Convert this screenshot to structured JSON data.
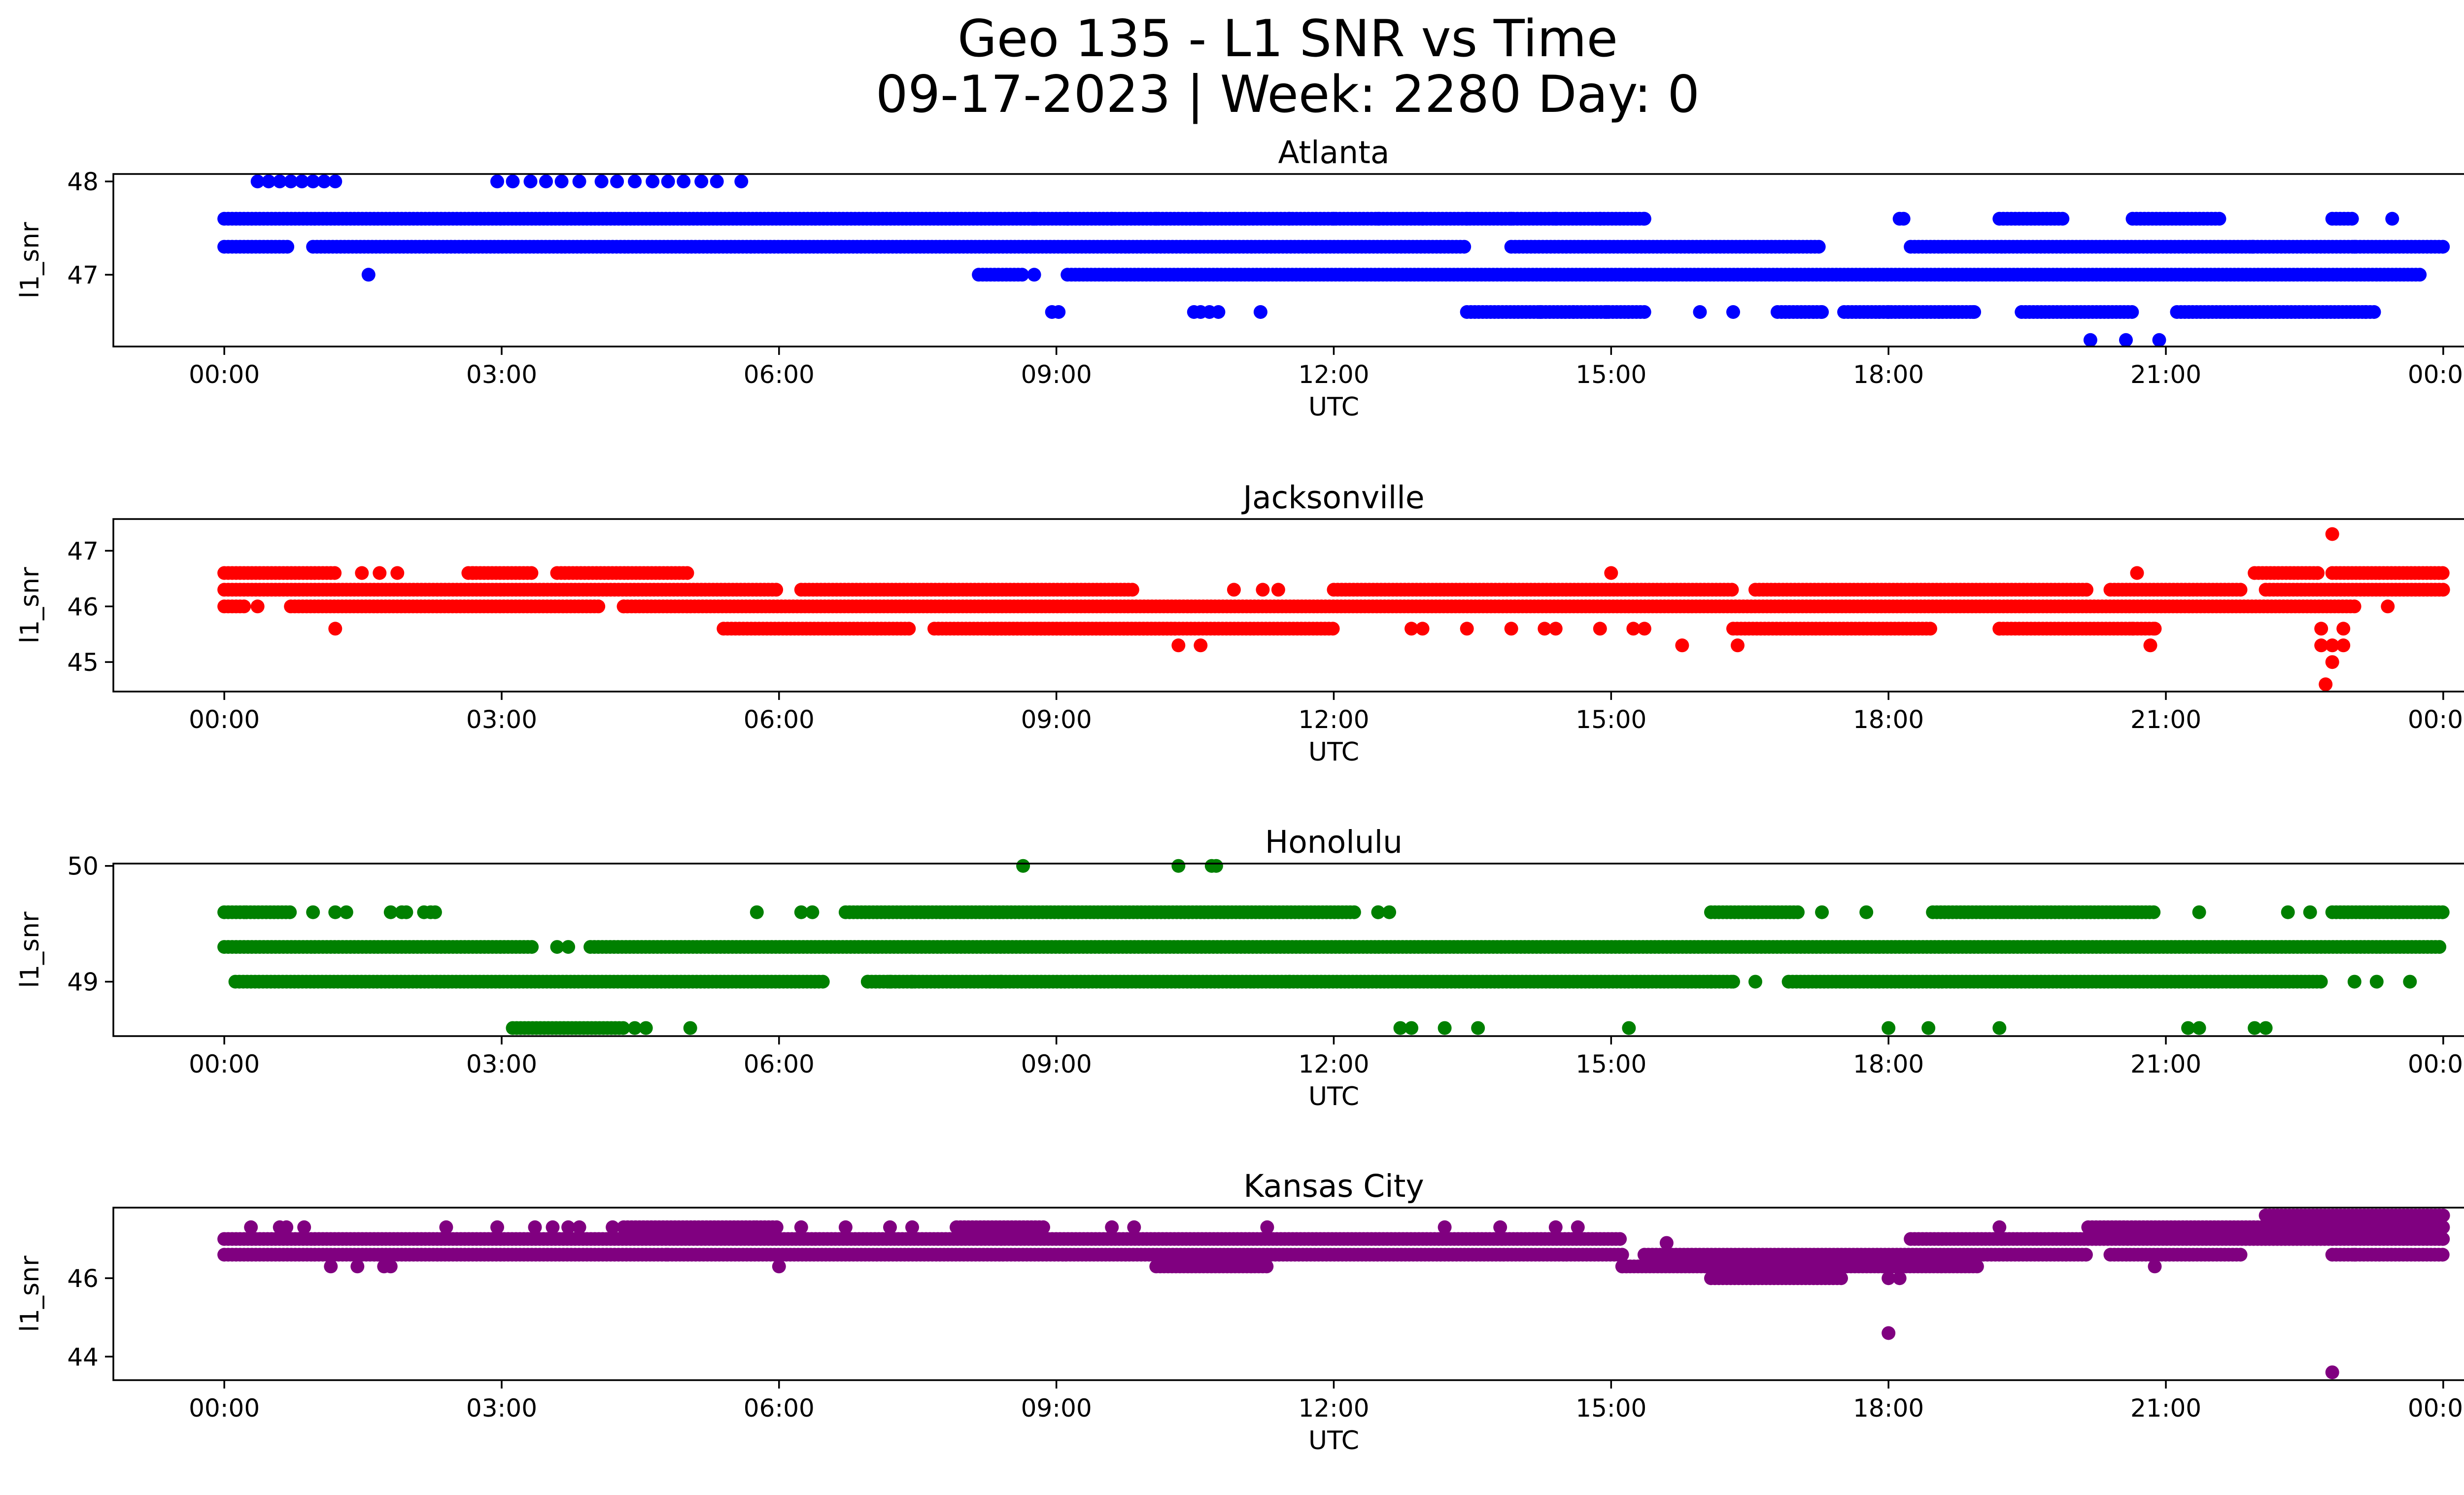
{
  "figure": {
    "title_line1": "Geo 135 - L1 SNR vs Time",
    "title_line2": "09-17-2023 | Week: 2280 Day: 0"
  },
  "chart_data": [
    {
      "type": "scatter",
      "title": "Atlanta",
      "xlabel": "UTC",
      "ylabel": "l1_snr",
      "color": "#0000ff",
      "xlim": [
        -0.05,
        1.05
      ],
      "ylim": [
        46.23,
        48.08
      ],
      "x_ticks": [
        "00:00",
        "03:00",
        "06:00",
        "09:00",
        "12:00",
        "15:00",
        "18:00",
        "21:00",
        "00:00"
      ],
      "y_ticks": [
        47,
        48
      ],
      "bands": [
        {
          "y": 47.6,
          "segments": [
            [
              0.0,
              0.64
            ],
            [
              0.755,
              0.758
            ],
            [
              0.8,
              0.83
            ],
            [
              0.86,
              0.9
            ],
            [
              0.95,
              0.96
            ]
          ]
        },
        {
          "y": 47.3,
          "segments": [
            [
              0.0,
              0.03
            ],
            [
              0.04,
              0.56
            ],
            [
              0.58,
              0.72
            ],
            [
              0.76,
              1.0
            ]
          ]
        },
        {
          "y": 47.0,
          "segments": [
            [
              0.34,
              0.36
            ],
            [
              0.38,
              0.99
            ]
          ]
        },
        {
          "y": 46.6,
          "segments": [
            [
              0.56,
              0.64
            ],
            [
              0.7,
              0.72
            ],
            [
              0.73,
              0.79
            ],
            [
              0.81,
              0.86
            ],
            [
              0.88,
              0.97
            ]
          ]
        }
      ],
      "points": [
        {
          "x": 0.015,
          "y": 48.0
        },
        {
          "x": 0.02,
          "y": 48.0
        },
        {
          "x": 0.025,
          "y": 48.0
        },
        {
          "x": 0.03,
          "y": 48.0
        },
        {
          "x": 0.035,
          "y": 48.0
        },
        {
          "x": 0.04,
          "y": 48.0
        },
        {
          "x": 0.045,
          "y": 48.0
        },
        {
          "x": 0.05,
          "y": 48.0
        },
        {
          "x": 0.123,
          "y": 48.0
        },
        {
          "x": 0.13,
          "y": 48.0
        },
        {
          "x": 0.138,
          "y": 48.0
        },
        {
          "x": 0.145,
          "y": 48.0
        },
        {
          "x": 0.152,
          "y": 48.0
        },
        {
          "x": 0.16,
          "y": 48.0
        },
        {
          "x": 0.17,
          "y": 48.0
        },
        {
          "x": 0.177,
          "y": 48.0
        },
        {
          "x": 0.185,
          "y": 48.0
        },
        {
          "x": 0.193,
          "y": 48.0
        },
        {
          "x": 0.2,
          "y": 48.0
        },
        {
          "x": 0.207,
          "y": 48.0
        },
        {
          "x": 0.215,
          "y": 48.0
        },
        {
          "x": 0.222,
          "y": 48.0
        },
        {
          "x": 0.233,
          "y": 48.0
        },
        {
          "x": 0.065,
          "y": 47.0
        },
        {
          "x": 0.365,
          "y": 47.6
        },
        {
          "x": 0.38,
          "y": 47.6
        },
        {
          "x": 0.4,
          "y": 47.6
        },
        {
          "x": 0.42,
          "y": 47.6
        },
        {
          "x": 0.44,
          "y": 47.6
        },
        {
          "x": 0.46,
          "y": 47.6
        },
        {
          "x": 0.48,
          "y": 47.6
        },
        {
          "x": 0.5,
          "y": 47.6
        },
        {
          "x": 0.52,
          "y": 47.6
        },
        {
          "x": 0.54,
          "y": 47.6
        },
        {
          "x": 0.56,
          "y": 47.6
        },
        {
          "x": 0.58,
          "y": 47.6
        },
        {
          "x": 0.6,
          "y": 47.6
        },
        {
          "x": 0.62,
          "y": 47.6
        },
        {
          "x": 0.64,
          "y": 47.6
        },
        {
          "x": 0.977,
          "y": 47.6
        },
        {
          "x": 0.914,
          "y": 47.3
        },
        {
          "x": 0.96,
          "y": 47.3
        },
        {
          "x": 0.365,
          "y": 47.0
        },
        {
          "x": 0.593,
          "y": 46.6
        },
        {
          "x": 0.608,
          "y": 46.6
        },
        {
          "x": 0.623,
          "y": 46.6
        },
        {
          "x": 0.665,
          "y": 46.6
        },
        {
          "x": 0.68,
          "y": 46.6
        },
        {
          "x": 0.72,
          "y": 46.6
        },
        {
          "x": 0.75,
          "y": 46.6
        },
        {
          "x": 0.788,
          "y": 46.6
        },
        {
          "x": 0.965,
          "y": 46.6
        },
        {
          "x": 0.373,
          "y": 46.6
        },
        {
          "x": 0.376,
          "y": 46.6
        },
        {
          "x": 0.437,
          "y": 46.6
        },
        {
          "x": 0.44,
          "y": 46.6
        },
        {
          "x": 0.444,
          "y": 46.6
        },
        {
          "x": 0.448,
          "y": 46.6
        },
        {
          "x": 0.467,
          "y": 46.6
        },
        {
          "x": 0.841,
          "y": 46.3
        },
        {
          "x": 0.857,
          "y": 46.3
        },
        {
          "x": 0.872,
          "y": 46.3
        }
      ]
    },
    {
      "type": "scatter",
      "title": "Jacksonville",
      "xlabel": "UTC",
      "ylabel": "l1_snr",
      "color": "#ff0000",
      "xlim": [
        -0.05,
        1.05
      ],
      "ylim": [
        44.47,
        47.57
      ],
      "x_ticks": [
        "00:00",
        "03:00",
        "06:00",
        "09:00",
        "12:00",
        "15:00",
        "18:00",
        "21:00",
        "00:00"
      ],
      "y_ticks": [
        45,
        46,
        47
      ],
      "bands": [
        {
          "y": 46.6,
          "segments": [
            [
              0.0,
              0.05
            ],
            [
              0.11,
              0.14
            ],
            [
              0.15,
              0.21
            ],
            [
              0.915,
              0.945
            ],
            [
              0.95,
              1.0
            ]
          ]
        },
        {
          "y": 46.3,
          "segments": [
            [
              0.0,
              0.25
            ],
            [
              0.26,
              0.41
            ],
            [
              0.5,
              0.68
            ],
            [
              0.69,
              0.84
            ],
            [
              0.85,
              0.91
            ],
            [
              0.92,
              1.0
            ]
          ]
        },
        {
          "y": 46.0,
          "segments": [
            [
              0.0,
              0.01
            ],
            [
              0.03,
              0.17
            ],
            [
              0.18,
              0.96
            ]
          ]
        },
        {
          "y": 45.6,
          "segments": [
            [
              0.225,
              0.31
            ],
            [
              0.32,
              0.43
            ],
            [
              0.345,
              0.5
            ],
            [
              0.68,
              0.77
            ],
            [
              0.8,
              0.87
            ]
          ]
        }
      ],
      "points": [
        {
          "x": 0.062,
          "y": 46.6
        },
        {
          "x": 0.07,
          "y": 46.6
        },
        {
          "x": 0.078,
          "y": 46.6
        },
        {
          "x": 0.112,
          "y": 46.6
        },
        {
          "x": 0.625,
          "y": 46.6
        },
        {
          "x": 0.862,
          "y": 46.6
        },
        {
          "x": 0.05,
          "y": 45.6
        },
        {
          "x": 0.015,
          "y": 46.0
        },
        {
          "x": 0.18,
          "y": 46.0
        },
        {
          "x": 0.455,
          "y": 46.3
        },
        {
          "x": 0.468,
          "y": 46.3
        },
        {
          "x": 0.475,
          "y": 46.3
        },
        {
          "x": 0.535,
          "y": 45.6
        },
        {
          "x": 0.54,
          "y": 45.6
        },
        {
          "x": 0.56,
          "y": 45.6
        },
        {
          "x": 0.58,
          "y": 45.6
        },
        {
          "x": 0.595,
          "y": 45.6
        },
        {
          "x": 0.6,
          "y": 45.6
        },
        {
          "x": 0.62,
          "y": 45.6
        },
        {
          "x": 0.635,
          "y": 45.6
        },
        {
          "x": 0.64,
          "y": 45.6
        },
        {
          "x": 0.8,
          "y": 45.6
        },
        {
          "x": 0.86,
          "y": 45.6
        },
        {
          "x": 0.87,
          "y": 45.6
        },
        {
          "x": 0.43,
          "y": 45.3
        },
        {
          "x": 0.44,
          "y": 45.3
        },
        {
          "x": 0.657,
          "y": 45.3
        },
        {
          "x": 0.682,
          "y": 45.3
        },
        {
          "x": 0.868,
          "y": 45.3
        },
        {
          "x": 0.95,
          "y": 47.3
        },
        {
          "x": 0.945,
          "y": 45.6
        },
        {
          "x": 0.955,
          "y": 45.6
        },
        {
          "x": 0.945,
          "y": 45.3
        },
        {
          "x": 0.95,
          "y": 45.3
        },
        {
          "x": 0.955,
          "y": 45.3
        },
        {
          "x": 0.95,
          "y": 45.0
        },
        {
          "x": 0.947,
          "y": 44.6
        },
        {
          "x": 0.975,
          "y": 46.0
        }
      ]
    },
    {
      "type": "scatter",
      "title": "Honolulu",
      "xlabel": "UTC",
      "ylabel": "l1_snr",
      "color": "#008000",
      "xlim": [
        -0.05,
        1.05
      ],
      "ylim": [
        48.53,
        50.02
      ],
      "x_ticks": [
        "00:00",
        "03:00",
        "06:00",
        "09:00",
        "12:00",
        "15:00",
        "18:00",
        "21:00",
        "00:00"
      ],
      "y_ticks": [
        49,
        50
      ],
      "bands": [
        {
          "y": 49.6,
          "segments": [
            [
              0.0,
              0.01
            ],
            [
              0.01,
              0.03
            ],
            [
              0.28,
              0.51
            ],
            [
              0.52,
              0.52
            ],
            [
              0.67,
              0.71
            ],
            [
              0.77,
              0.87
            ],
            [
              0.95,
              1.0
            ]
          ]
        },
        {
          "y": 49.3,
          "segments": [
            [
              0.0,
              0.14
            ],
            [
              0.165,
              1.0
            ]
          ]
        },
        {
          "y": 49.0,
          "segments": [
            [
              0.005,
              0.27
            ],
            [
              0.29,
              0.68
            ],
            [
              0.705,
              0.945
            ]
          ]
        },
        {
          "y": 48.6,
          "segments": [
            [
              0.13,
              0.18
            ]
          ]
        }
      ],
      "points": [
        {
          "x": 0.04,
          "y": 49.6
        },
        {
          "x": 0.05,
          "y": 49.6
        },
        {
          "x": 0.055,
          "y": 49.6
        },
        {
          "x": 0.075,
          "y": 49.6
        },
        {
          "x": 0.082,
          "y": 49.6
        },
        {
          "x": 0.09,
          "y": 49.6
        },
        {
          "x": 0.095,
          "y": 49.6
        },
        {
          "x": 0.093,
          "y": 49.6
        },
        {
          "x": 0.24,
          "y": 49.6
        },
        {
          "x": 0.26,
          "y": 49.6
        },
        {
          "x": 0.265,
          "y": 49.6
        },
        {
          "x": 0.08,
          "y": 49.6
        },
        {
          "x": 0.52,
          "y": 49.6
        },
        {
          "x": 0.525,
          "y": 49.6
        },
        {
          "x": 0.72,
          "y": 49.6
        },
        {
          "x": 0.74,
          "y": 49.6
        },
        {
          "x": 0.89,
          "y": 49.6
        },
        {
          "x": 0.93,
          "y": 49.6
        },
        {
          "x": 0.94,
          "y": 49.6
        },
        {
          "x": 0.15,
          "y": 49.3
        },
        {
          "x": 0.155,
          "y": 49.3
        },
        {
          "x": 0.29,
          "y": 49.0
        },
        {
          "x": 0.3,
          "y": 49.0
        },
        {
          "x": 0.31,
          "y": 49.0
        },
        {
          "x": 0.345,
          "y": 49.0
        },
        {
          "x": 0.35,
          "y": 49.0
        },
        {
          "x": 0.48,
          "y": 49.0
        },
        {
          "x": 0.67,
          "y": 49.0
        },
        {
          "x": 0.68,
          "y": 49.0
        },
        {
          "x": 0.69,
          "y": 49.0
        },
        {
          "x": 0.96,
          "y": 49.0
        },
        {
          "x": 0.97,
          "y": 49.0
        },
        {
          "x": 0.985,
          "y": 49.0
        },
        {
          "x": 0.185,
          "y": 48.6
        },
        {
          "x": 0.19,
          "y": 48.6
        },
        {
          "x": 0.21,
          "y": 48.6
        },
        {
          "x": 0.53,
          "y": 48.6
        },
        {
          "x": 0.535,
          "y": 48.6
        },
        {
          "x": 0.55,
          "y": 48.6
        },
        {
          "x": 0.565,
          "y": 48.6
        },
        {
          "x": 0.633,
          "y": 48.6
        },
        {
          "x": 0.75,
          "y": 48.6
        },
        {
          "x": 0.768,
          "y": 48.6
        },
        {
          "x": 0.8,
          "y": 48.6
        },
        {
          "x": 0.885,
          "y": 48.6
        },
        {
          "x": 0.89,
          "y": 48.6
        },
        {
          "x": 0.915,
          "y": 48.6
        },
        {
          "x": 0.92,
          "y": 48.6
        },
        {
          "x": 0.36,
          "y": 50.0
        },
        {
          "x": 0.43,
          "y": 50.0
        },
        {
          "x": 0.445,
          "y": 50.0
        },
        {
          "x": 0.447,
          "y": 50.0
        }
      ]
    },
    {
      "type": "scatter",
      "title": "Kansas City",
      "xlabel": "UTC",
      "ylabel": "l1_snr",
      "color": "#800080",
      "xlim": [
        -0.05,
        1.05
      ],
      "ylim": [
        43.4,
        47.8
      ],
      "x_ticks": [
        "00:00",
        "03:00",
        "06:00",
        "09:00",
        "12:00",
        "15:00",
        "18:00",
        "21:00",
        "00:00"
      ],
      "y_ticks": [
        44,
        46
      ],
      "bands": [
        {
          "y": 47.6,
          "segments": [
            [
              0.92,
              1.0
            ]
          ]
        },
        {
          "y": 47.3,
          "segments": [
            [
              0.1,
              0.1
            ],
            [
              0.18,
              0.24
            ],
            [
              0.24,
              0.25
            ],
            [
              0.33,
              0.37
            ],
            [
              0.84,
              1.0
            ]
          ]
        },
        {
          "y": 47.0,
          "segments": [
            [
              0.0,
              0.63
            ],
            [
              0.76,
              1.0
            ]
          ]
        },
        {
          "y": 46.6,
          "segments": [
            [
              0.0,
              0.2
            ],
            [
              0.2,
              0.63
            ],
            [
              0.64,
              0.84
            ],
            [
              0.85,
              0.91
            ],
            [
              0.95,
              1.0
            ]
          ]
        },
        {
          "y": 46.3,
          "segments": [
            [
              0.42,
              0.47
            ],
            [
              0.63,
              0.79
            ]
          ]
        },
        {
          "y": 46.0,
          "segments": [
            [
              0.67,
              0.73
            ]
          ]
        }
      ],
      "points": [
        {
          "x": 0.012,
          "y": 47.3
        },
        {
          "x": 0.025,
          "y": 47.3
        },
        {
          "x": 0.028,
          "y": 47.3
        },
        {
          "x": 0.036,
          "y": 47.3
        },
        {
          "x": 0.123,
          "y": 47.3
        },
        {
          "x": 0.14,
          "y": 47.3
        },
        {
          "x": 0.148,
          "y": 47.3
        },
        {
          "x": 0.155,
          "y": 47.3
        },
        {
          "x": 0.16,
          "y": 47.3
        },
        {
          "x": 0.175,
          "y": 47.3
        },
        {
          "x": 0.26,
          "y": 47.3
        },
        {
          "x": 0.28,
          "y": 47.3
        },
        {
          "x": 0.3,
          "y": 47.3
        },
        {
          "x": 0.31,
          "y": 47.3
        },
        {
          "x": 0.4,
          "y": 47.3
        },
        {
          "x": 0.41,
          "y": 47.3
        },
        {
          "x": 0.47,
          "y": 47.3
        },
        {
          "x": 0.55,
          "y": 47.3
        },
        {
          "x": 0.575,
          "y": 47.3
        },
        {
          "x": 0.6,
          "y": 47.3
        },
        {
          "x": 0.61,
          "y": 47.3
        },
        {
          "x": 0.8,
          "y": 47.3
        },
        {
          "x": 0.048,
          "y": 46.3
        },
        {
          "x": 0.06,
          "y": 46.3
        },
        {
          "x": 0.072,
          "y": 46.3
        },
        {
          "x": 0.075,
          "y": 46.3
        },
        {
          "x": 0.25,
          "y": 46.3
        },
        {
          "x": 0.63,
          "y": 46.3
        },
        {
          "x": 0.87,
          "y": 46.3
        },
        {
          "x": 0.65,
          "y": 46.9
        },
        {
          "x": 0.96,
          "y": 46.6
        },
        {
          "x": 0.95,
          "y": 47.0
        },
        {
          "x": 0.75,
          "y": 46.0
        },
        {
          "x": 0.755,
          "y": 46.0
        },
        {
          "x": 0.75,
          "y": 44.6
        },
        {
          "x": 0.95,
          "y": 43.6
        }
      ]
    }
  ]
}
